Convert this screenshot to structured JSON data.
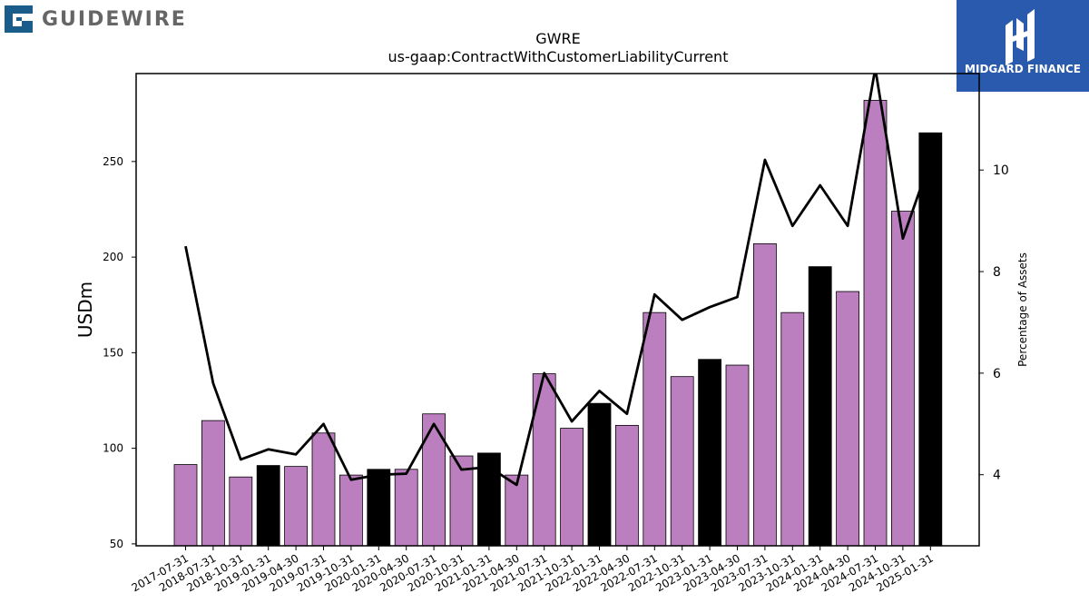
{
  "logos": {
    "left_wordmark": "GUIDEWIRE",
    "right_wordmark": "MIDGARD FINANCE",
    "left_color": "#1b5d8a",
    "right_bg": "#2a5aad"
  },
  "chart_data": {
    "type": "bar",
    "title": "GWRE",
    "subtitle": "us-gaap:ContractWithCustomerLiabilityCurrent",
    "ylabel": "USDm",
    "y2label": "Percentage of Assets",
    "ylim": [
      49,
      296
    ],
    "y2lim": [
      2.6,
      11.9
    ],
    "yticks": [
      50,
      100,
      150,
      200,
      250
    ],
    "y2ticks": [
      4,
      6,
      8,
      10
    ],
    "colors": {
      "bar": "#bb7fbf",
      "highlight": "#000000",
      "line": "#000000"
    },
    "categories": [
      "2017-07-31",
      "2018-07-31",
      "2018-10-31",
      "2019-01-31",
      "2019-04-30",
      "2019-07-31",
      "2019-10-31",
      "2020-01-31",
      "2020-04-30",
      "2020-07-31",
      "2020-10-31",
      "2021-01-31",
      "2021-04-30",
      "2021-07-31",
      "2021-10-31",
      "2022-01-31",
      "2022-04-30",
      "2022-07-31",
      "2022-10-31",
      "2023-01-31",
      "2023-04-30",
      "2023-07-31",
      "2023-10-31",
      "2024-01-31",
      "2024-04-30",
      "2024-07-31",
      "2024-10-31",
      "2025-01-31"
    ],
    "series": [
      {
        "type": "bar",
        "values": [
          91.5,
          114.5,
          85,
          91,
          90.5,
          108,
          86,
          89,
          89,
          118,
          96,
          97.5,
          86,
          139,
          110.5,
          123.5,
          112,
          171,
          137.5,
          146.5,
          143.5,
          207,
          171,
          195,
          182,
          282,
          224,
          265
        ],
        "highlight": [
          false,
          false,
          false,
          true,
          false,
          false,
          false,
          true,
          false,
          false,
          false,
          true,
          false,
          false,
          false,
          true,
          false,
          false,
          false,
          true,
          false,
          false,
          false,
          true,
          false,
          false,
          false,
          true
        ]
      },
      {
        "type": "line",
        "axis": "right",
        "values": [
          8.5,
          5.8,
          4.3,
          4.5,
          4.4,
          5.0,
          3.9,
          4.0,
          4.02,
          5.0,
          4.1,
          4.15,
          3.8,
          6.0,
          5.05,
          5.65,
          5.2,
          7.55,
          7.05,
          7.3,
          7.5,
          10.2,
          8.9,
          9.7,
          8.9,
          12.0,
          8.65,
          10.2
        ]
      }
    ]
  }
}
